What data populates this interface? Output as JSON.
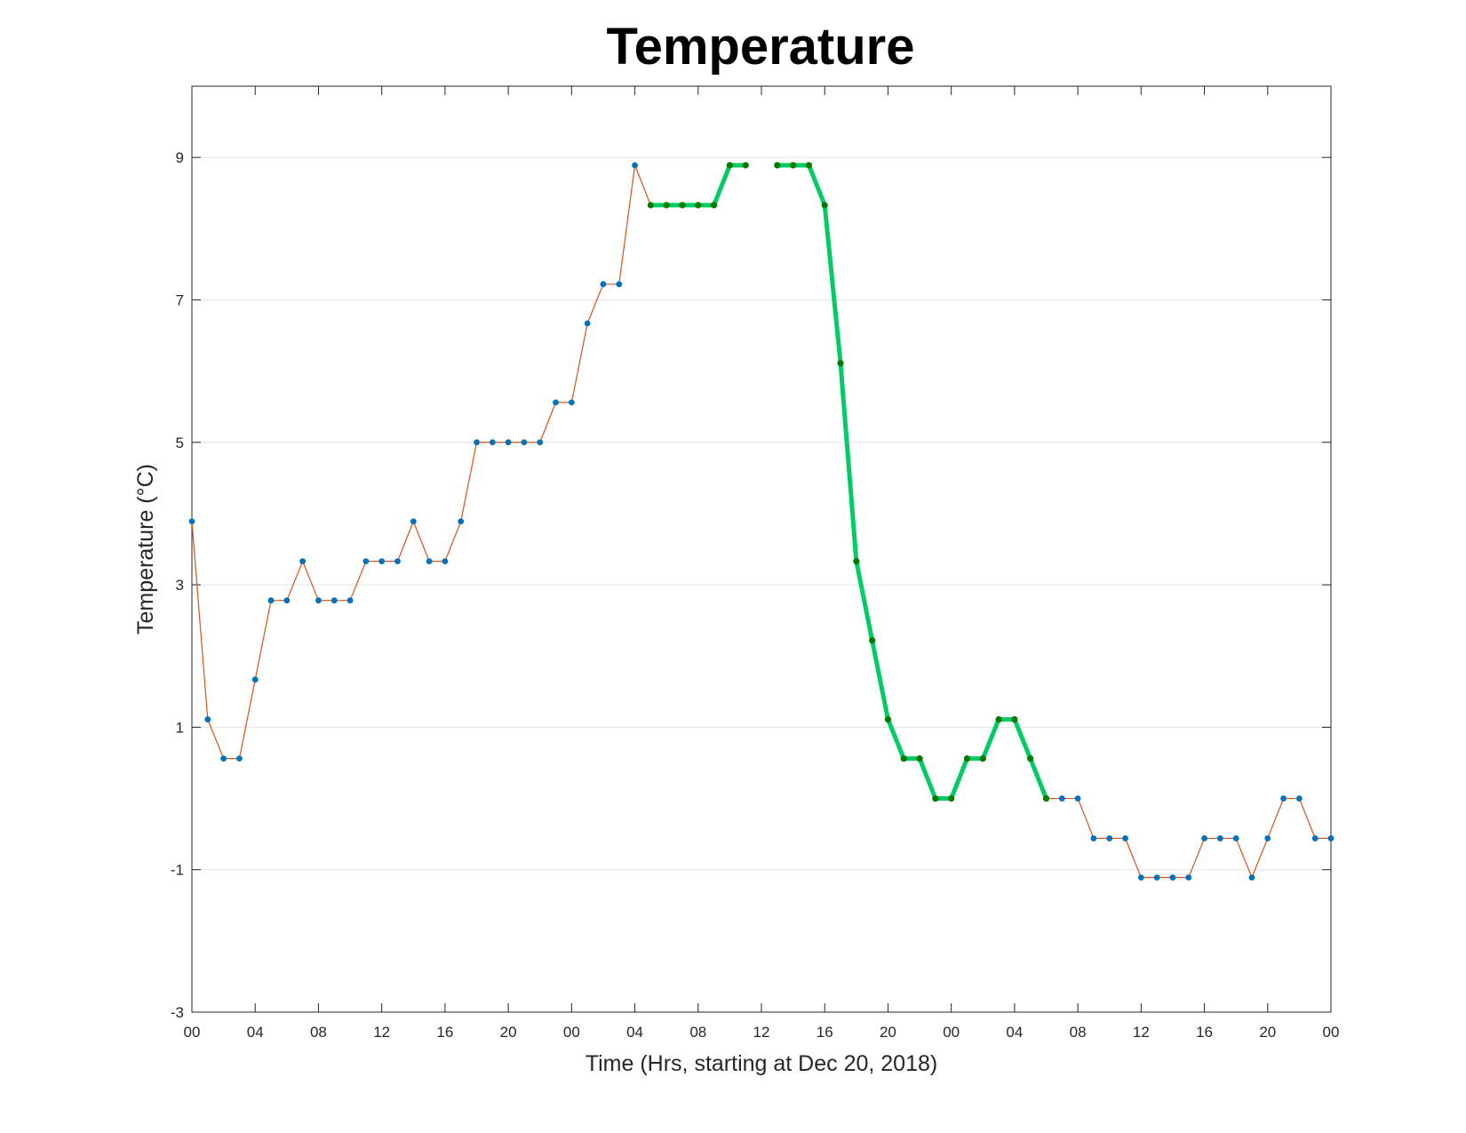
{
  "chart_data": {
    "type": "line",
    "title": "Temperature",
    "xlabel": "Time (Hrs, starting at Dec 20, 2018)",
    "ylabel": "Temperature (°C)",
    "ylim": [
      -3,
      10
    ],
    "xlim": [
      0,
      72
    ],
    "yticks": [
      -3,
      -1,
      1,
      3,
      5,
      7,
      9
    ],
    "ytick_labels": [
      "-3",
      "-1",
      "1",
      "3",
      "5",
      "7",
      "9"
    ],
    "xticks": [
      0,
      4,
      8,
      12,
      16,
      20,
      24,
      28,
      32,
      36,
      40,
      44,
      48,
      52,
      56,
      60,
      64,
      68,
      72
    ],
    "xtick_labels": [
      "00",
      "04",
      "08",
      "12",
      "16",
      "20",
      "00",
      "04",
      "08",
      "12",
      "16",
      "20",
      "00",
      "04",
      "08",
      "12",
      "16",
      "20",
      "00"
    ],
    "grid": "horizontal",
    "colors": {
      "base_line": "#d95319",
      "base_marker": "#0072bd",
      "highlight_line": "#00cc66",
      "highlight_marker": "#007a00"
    },
    "series": [
      {
        "x": [
          0,
          1,
          2,
          3,
          4,
          5,
          6,
          7,
          8,
          9,
          10,
          11,
          12,
          13,
          14,
          15,
          16,
          17,
          18,
          19,
          20,
          21,
          22,
          23,
          24,
          25,
          26,
          27,
          28,
          29,
          30,
          31,
          32,
          33,
          34,
          35,
          36,
          37,
          38,
          39,
          40,
          41,
          42,
          43,
          44,
          45,
          46,
          47,
          48,
          49,
          50,
          51,
          52,
          53,
          54,
          55,
          56,
          57,
          58,
          59,
          60,
          61,
          62,
          63,
          64,
          65,
          66,
          67,
          68,
          69,
          70,
          71,
          72
        ],
        "y": [
          3.89,
          1.11,
          0.56,
          0.56,
          1.67,
          2.78,
          2.78,
          3.33,
          2.78,
          2.78,
          2.78,
          3.33,
          3.33,
          3.33,
          3.89,
          3.33,
          3.33,
          3.89,
          5.0,
          5.0,
          5.0,
          5.0,
          5.0,
          5.56,
          5.56,
          6.67,
          7.22,
          7.22,
          8.89,
          8.33,
          8.33,
          8.33,
          8.33,
          8.33,
          8.89,
          8.89,
          null,
          8.89,
          8.89,
          8.89,
          8.33,
          6.11,
          3.33,
          2.22,
          1.11,
          0.56,
          0.56,
          0.0,
          0.0,
          0.56,
          0.56,
          1.11,
          1.11,
          0.56,
          0.0,
          0.0,
          0.0,
          -0.56,
          -0.56,
          -0.56,
          -1.11,
          -1.11,
          -1.11,
          -1.11,
          -0.56,
          -0.56,
          -0.56,
          -1.11,
          -0.56,
          0.0,
          0.0,
          -0.56,
          -0.56
        ]
      },
      {
        "x": [
          29,
          30,
          31,
          32,
          33,
          34,
          35,
          36,
          37,
          38,
          39,
          40,
          41,
          42,
          43,
          44,
          45,
          46,
          47,
          48,
          49,
          50,
          51,
          52,
          53,
          54
        ],
        "y": [
          8.33,
          8.33,
          8.33,
          8.33,
          8.33,
          8.89,
          8.89,
          null,
          8.89,
          8.89,
          8.89,
          8.33,
          6.11,
          3.33,
          2.22,
          1.11,
          0.56,
          0.56,
          0.0,
          0.0,
          0.56,
          0.56,
          1.11,
          1.11,
          0.56,
          0.0
        ]
      }
    ]
  }
}
